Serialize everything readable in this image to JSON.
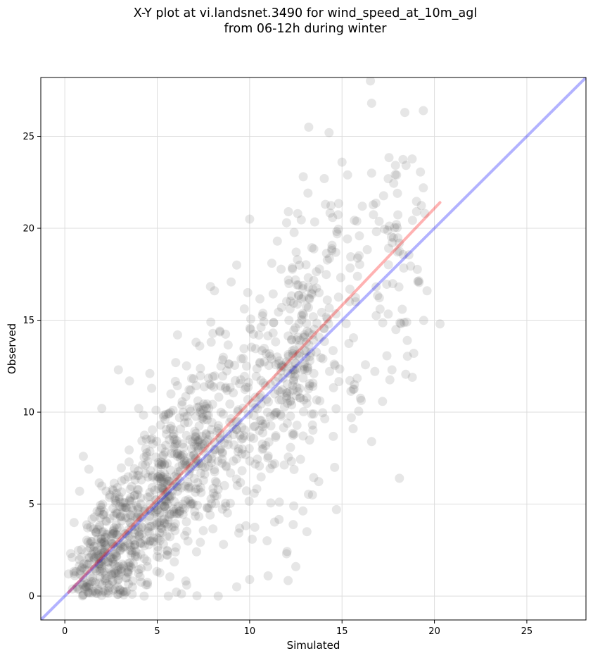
{
  "chart_data": {
    "type": "scatter",
    "title_line1": "X-Y plot at vi.landsnet.3490 for wind_speed_at_10m_agl",
    "title_line2": "from 06-12h during winter",
    "xlabel": "Simulated",
    "ylabel": "Observed",
    "xlim": [
      -1.3,
      28.2
    ],
    "ylim": [
      -1.3,
      28.2
    ],
    "xticks": [
      0,
      5,
      10,
      15,
      20,
      25
    ],
    "yticks": [
      0,
      5,
      10,
      15,
      20,
      25
    ],
    "grid": true,
    "point_color": "#555555",
    "point_opacity": 0.15,
    "series": [
      {
        "values_outline": [
          [
            0.2,
            1.2
          ],
          [
            0.4,
            2.1
          ],
          [
            0.5,
            4.0
          ],
          [
            0.8,
            5.7
          ],
          [
            1.0,
            7.6
          ],
          [
            1.3,
            6.9
          ],
          [
            2.0,
            10.2
          ],
          [
            2.9,
            12.3
          ],
          [
            3.5,
            11.7
          ],
          [
            4.0,
            10.2
          ],
          [
            4.6,
            12.1
          ],
          [
            4.7,
            11.3
          ],
          [
            6.0,
            12.7
          ],
          [
            6.1,
            14.2
          ],
          [
            7.1,
            13.8
          ],
          [
            7.3,
            13.6
          ],
          [
            7.9,
            14.9
          ],
          [
            8.1,
            16.6
          ],
          [
            9.3,
            18.0
          ],
          [
            9.9,
            16.5
          ],
          [
            10.0,
            20.5
          ],
          [
            11.2,
            18.1
          ],
          [
            11.5,
            19.3
          ],
          [
            12.0,
            20.3
          ],
          [
            12.1,
            20.9
          ],
          [
            12.6,
            20.8
          ],
          [
            12.9,
            22.8
          ],
          [
            13.2,
            25.5
          ],
          [
            14.1,
            21.3
          ],
          [
            14.3,
            25.2
          ],
          [
            15.0,
            23.6
          ],
          [
            15.3,
            22.9
          ],
          [
            16.1,
            21.2
          ],
          [
            16.6,
            26.8
          ],
          [
            16.6,
            23.0
          ],
          [
            17.5,
            22.7
          ],
          [
            18.4,
            26.3
          ],
          [
            18.0,
            21.9
          ],
          [
            19.4,
            26.4
          ],
          [
            19.4,
            22.2
          ],
          [
            20.3,
            14.8
          ],
          [
            19.6,
            16.6
          ],
          [
            18.5,
            14.9
          ],
          [
            17.7,
            12.3
          ],
          [
            18.8,
            11.9
          ],
          [
            16.6,
            8.4
          ],
          [
            15.6,
            9.1
          ],
          [
            15.5,
            9.7
          ],
          [
            14.6,
            7.0
          ],
          [
            14.7,
            4.7
          ],
          [
            13.4,
            5.5
          ],
          [
            13.1,
            3.5
          ],
          [
            12.5,
            1.6
          ],
          [
            12.0,
            2.3
          ],
          [
            11.0,
            1.1
          ],
          [
            10.0,
            0.9
          ],
          [
            9.3,
            0.5
          ],
          [
            8.3,
            0.0
          ],
          [
            6.6,
            0.6
          ],
          [
            5.6,
            0.0
          ]
        ]
      }
    ],
    "lines": [
      {
        "name": "",
        "color": "#0000ff",
        "opacity": 0.3,
        "x": [
          -1.3,
          28.2
        ],
        "y": [
          -1.3,
          28.2
        ]
      },
      {
        "name": "",
        "color": "#ff0000",
        "opacity": 0.3,
        "x": [
          0.2,
          20.3
        ],
        "y": [
          0.2,
          21.4
        ]
      }
    ]
  }
}
